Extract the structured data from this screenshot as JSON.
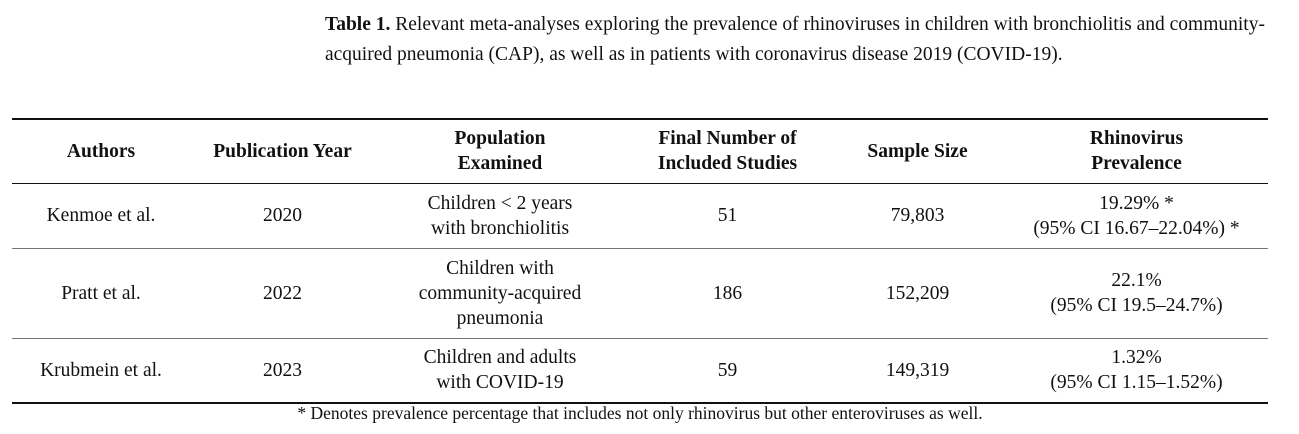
{
  "caption": {
    "label": "Table 1.",
    "text": "Relevant meta-analyses exploring the prevalence of rhinoviruses in children with bronchiolitis and community-acquired pneumonia (CAP), as well as in patients with coronavirus disease 2019 (COVID-19)."
  },
  "table": {
    "headers": [
      "Authors",
      "Publication Year",
      "Population Examined",
      "Final Number of Included Studies",
      "Sample Size",
      "Rhinovirus Prevalence"
    ],
    "rows": [
      [
        "Kenmoe et al.",
        "2020",
        [
          "Children < 2 years",
          "with bronchiolitis"
        ],
        "51",
        "79,803",
        [
          "19.29% *",
          "(95% CI 16.67–22.04%) *"
        ]
      ],
      [
        "Pratt et al.",
        "2022",
        [
          "Children with",
          "community-acquired",
          "pneumonia"
        ],
        "186",
        "152,209",
        [
          "22.1%",
          "(95% CI 19.5–24.7%)"
        ]
      ],
      [
        "Krubmein et al.",
        "2023",
        [
          "Children and adults",
          "with COVID-19"
        ],
        "59",
        "149,319",
        [
          "1.32%",
          "(95% CI 1.15–1.52%)"
        ]
      ]
    ]
  },
  "footnote": "* Denotes prevalence percentage that includes not only rhinovirus but other enteroviruses as well."
}
